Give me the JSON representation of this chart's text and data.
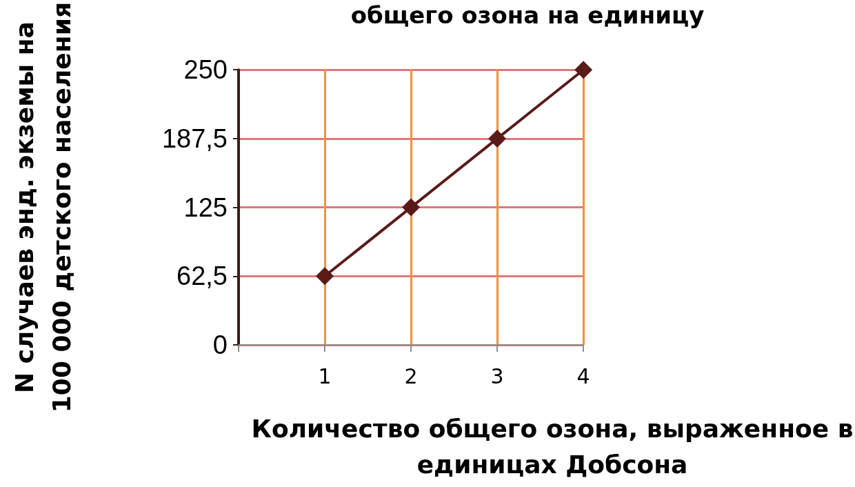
{
  "chart_data": {
    "type": "line",
    "title": "общего озона на единицу",
    "xlabel": "Количество общего озона, выраженное в\nединицах Добсона",
    "ylabel": "N случаев энд. экземы на\n100 000 детского населения",
    "x": [
      1,
      2,
      3,
      4
    ],
    "series": [
      {
        "color": "#5a1a18",
        "values": [
          62.5,
          125,
          187.5,
          250
        ]
      }
    ],
    "xlim": [
      0,
      4
    ],
    "xticks": [
      {
        "value": 0,
        "label": null
      },
      1,
      2,
      3,
      4
    ],
    "ylim": [
      0,
      250
    ],
    "yticks": [
      0,
      {
        "value": 62.5,
        "label": "62,5"
      },
      125,
      {
        "value": 187.5,
        "label": "187,5"
      },
      250
    ],
    "grid": true,
    "marker": "diamond",
    "line_style": "solid"
  }
}
